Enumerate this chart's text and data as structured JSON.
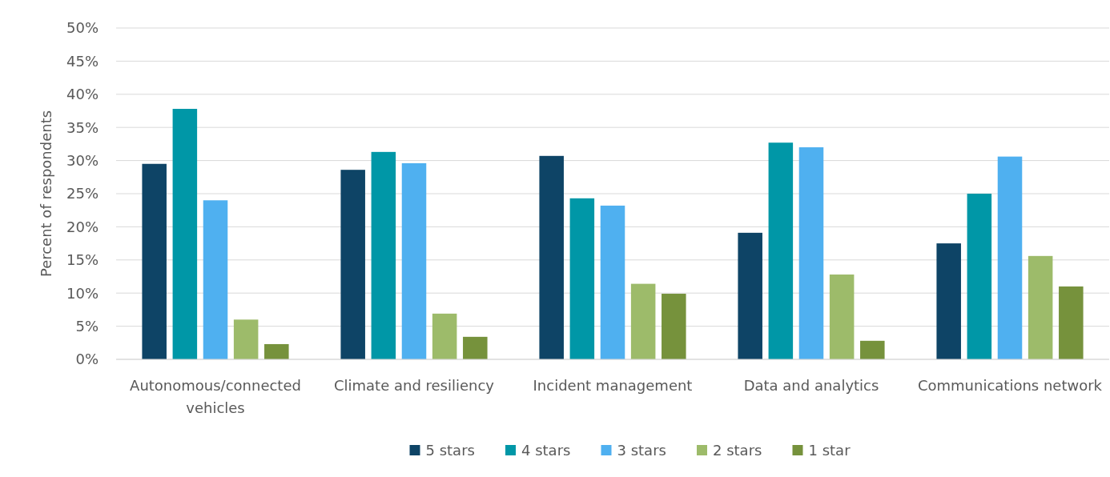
{
  "chart_data": {
    "type": "bar",
    "ylabel": "Percent of respondents",
    "categories": [
      "Autonomous/connected vehicles",
      "Climate and resiliency",
      "Incident management",
      "Data and analytics",
      "Communications network"
    ],
    "series": [
      {
        "name": "5 stars",
        "color": "#0e4466",
        "values": [
          29.5,
          28.6,
          30.7,
          19.1,
          17.5
        ]
      },
      {
        "name": "4 stars",
        "color": "#0097a7",
        "values": [
          37.8,
          31.3,
          24.3,
          32.7,
          25.0
        ]
      },
      {
        "name": "3 stars",
        "color": "#4fb0f0",
        "values": [
          24.0,
          29.6,
          23.2,
          32.0,
          30.6
        ]
      },
      {
        "name": "2 stars",
        "color": "#9dbb6a",
        "values": [
          6.0,
          6.9,
          11.4,
          12.8,
          15.6
        ]
      },
      {
        "name": "1 star",
        "color": "#76923c",
        "values": [
          2.3,
          3.4,
          9.9,
          2.8,
          11.0
        ]
      }
    ],
    "ylim": [
      0,
      50
    ],
    "yticks": [
      {
        "value": 0,
        "label": "0%"
      },
      {
        "value": 5,
        "label": "5%"
      },
      {
        "value": 10,
        "label": "10%"
      },
      {
        "value": 15,
        "label": "15%"
      },
      {
        "value": 20,
        "label": "20%"
      },
      {
        "value": 25,
        "label": "25%"
      },
      {
        "value": 30,
        "label": "30%"
      },
      {
        "value": 35,
        "label": "35%"
      },
      {
        "value": 40,
        "label": "40%"
      },
      {
        "value": 45,
        "label": "45%"
      },
      {
        "value": 50,
        "label": "50%"
      }
    ],
    "grid": "y",
    "legend": "bottom"
  }
}
